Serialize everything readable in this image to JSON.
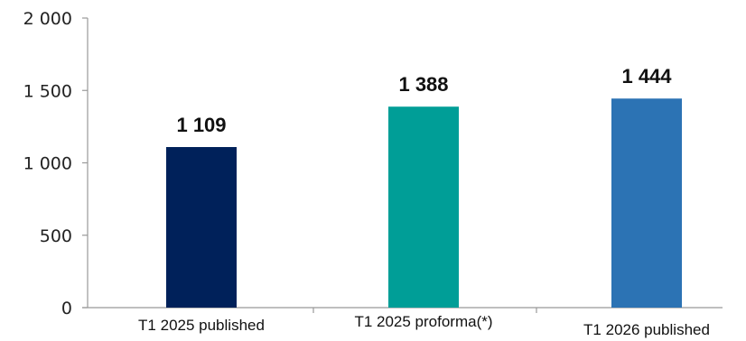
{
  "chart_data": {
    "type": "bar",
    "categories": [
      "T1 2025 published",
      "T1 2025 proforma(*)",
      "T1 2026 published"
    ],
    "values": [
      1109,
      1388,
      1444
    ],
    "data_labels": [
      "1 109",
      "1 388",
      "1 444"
    ],
    "colors": [
      "#00215a",
      "#009e97",
      "#2c73b4"
    ],
    "yticks": [
      0,
      500,
      1000,
      1500,
      2000
    ],
    "ytick_labels": [
      "0",
      "500",
      "1 000",
      "1 500",
      "2 000"
    ],
    "ylim": [
      0,
      2000
    ],
    "grid": false,
    "legend": "none"
  }
}
